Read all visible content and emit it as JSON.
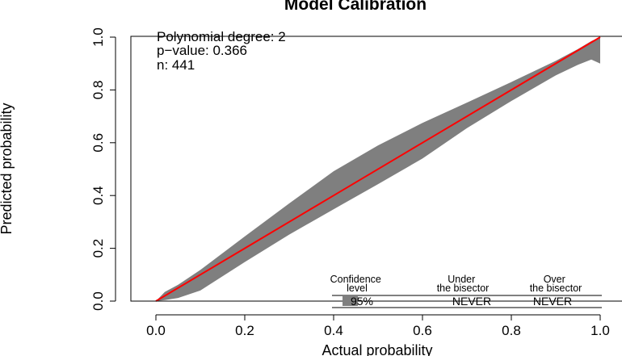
{
  "chart_data": {
    "type": "line",
    "title": "Model Calibration",
    "xlabel": "Actual probability",
    "ylabel": "Predicted probability",
    "xlim": [
      0,
      1
    ],
    "ylim": [
      0,
      1
    ],
    "x_ticks": [
      "0.0",
      "0.2",
      "0.4",
      "0.6",
      "0.8",
      "1.0"
    ],
    "y_ticks": [
      "0.0",
      "0.2",
      "0.4",
      "0.6",
      "0.8",
      "1.0"
    ],
    "grid": false,
    "stats": {
      "degree_label": "Polynomial degree: 2",
      "pvalue_label": "p−value: 0.366",
      "n_label": "n: 441"
    },
    "curve": {
      "color": "#ff0000",
      "x": [
        0,
        0.2,
        0.4,
        0.6,
        0.8,
        1.0
      ],
      "y": [
        0,
        0.2,
        0.4,
        0.6,
        0.8,
        1.0
      ]
    },
    "band": {
      "color": "#7f7f7f",
      "x": [
        0,
        0.02,
        0.05,
        0.1,
        0.2,
        0.3,
        0.4,
        0.5,
        0.6,
        0.7,
        0.8,
        0.9,
        0.95,
        0.98,
        1.0
      ],
      "upper": [
        0,
        0.035,
        0.062,
        0.118,
        0.245,
        0.37,
        0.492,
        0.59,
        0.675,
        0.752,
        0.83,
        0.91,
        0.955,
        0.985,
        1.0
      ],
      "lower": [
        0,
        0.004,
        0.012,
        0.04,
        0.148,
        0.252,
        0.348,
        0.443,
        0.54,
        0.655,
        0.758,
        0.855,
        0.895,
        0.915,
        0.9
      ]
    },
    "legend": {
      "position": "bottom-right",
      "headers": [
        "Confidence\nlevel",
        "Under\nthe bisector",
        "Over\nthe bisector"
      ],
      "row": [
        "95%",
        "NEVER",
        "NEVER"
      ]
    }
  }
}
